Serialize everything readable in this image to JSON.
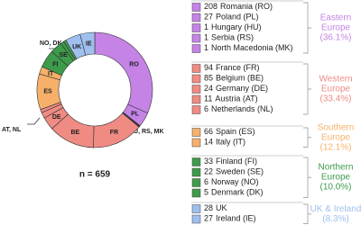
{
  "chart_data": {
    "type": "donut",
    "total_label": "n = 659",
    "annotations": [
      "HU, RS, MK",
      "AT, NL",
      "NO, DK"
    ],
    "series": [
      {
        "name": "Eastern Europe",
        "share": 36.1,
        "share_label": "(36.1%)",
        "color": "#c583e6",
        "categories": [
          "Romania (RO)",
          "Poland (PL)",
          "Hungary (HU)",
          "Serbia (RS)",
          "North Macedonia (MK)"
        ],
        "values": [
          208,
          27,
          1,
          1,
          1
        ],
        "segment_labels": [
          "RO",
          "PL",
          null,
          null,
          null
        ]
      },
      {
        "name": "Western Europe",
        "share": 33.4,
        "share_label": "(33.4%)",
        "color": "#f08b84",
        "categories": [
          "France (FR)",
          "Belgium (BE)",
          "Germany (DE)",
          "Austria (AT)",
          "Netherlands (NL)"
        ],
        "values": [
          94,
          85,
          24,
          11,
          6
        ],
        "segment_labels": [
          "FR",
          "BE",
          "DE",
          null,
          null
        ]
      },
      {
        "name": "Southern Europe",
        "share": 12.1,
        "share_label": "(12.1%)",
        "color": "#f6b06a",
        "categories": [
          "Spain (ES)",
          "Italy (IT)"
        ],
        "values": [
          66,
          14
        ],
        "segment_labels": [
          "ES",
          "IT"
        ]
      },
      {
        "name": "Northern Europe",
        "share": 10.0,
        "share_label": "(10.0%)",
        "color": "#3e9b4b",
        "categories": [
          "Finland (FI)",
          "Sweden (SE)",
          "Norway (NO)",
          "Denmark (DK)"
        ],
        "values": [
          33,
          22,
          6,
          5
        ],
        "segment_labels": [
          "FI",
          "SE",
          null,
          null
        ]
      },
      {
        "name": "UK & Ireland",
        "share": 8.3,
        "share_label": "(8.3%)",
        "color": "#9fbfee",
        "categories": [
          "UK",
          "Ireland (IE)"
        ],
        "values": [
          28,
          27
        ],
        "segment_labels": [
          "UK",
          "IE"
        ]
      }
    ]
  }
}
